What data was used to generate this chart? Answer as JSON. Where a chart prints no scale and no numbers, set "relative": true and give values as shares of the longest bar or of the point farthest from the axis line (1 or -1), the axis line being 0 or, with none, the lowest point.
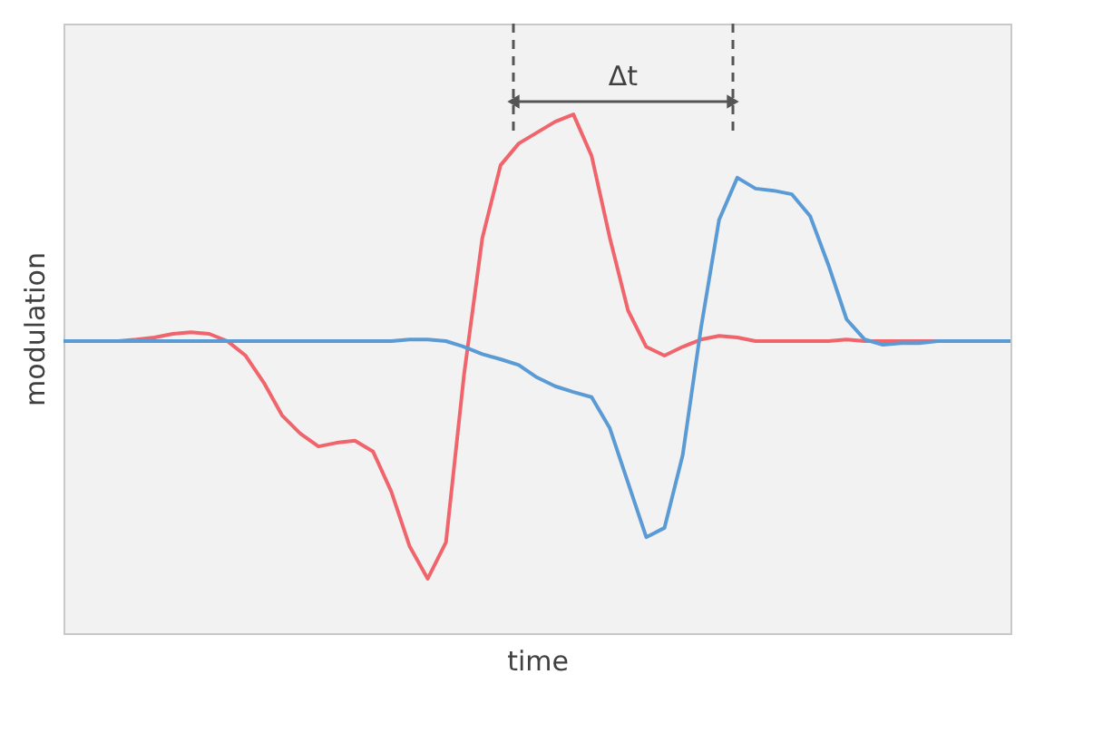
{
  "chart_data": {
    "type": "line",
    "relative": true,
    "xlabel": "time",
    "ylabel": "modulation",
    "line_style": "solid",
    "marker": "none",
    "categories": [
      null,
      null,
      null,
      null,
      null,
      null,
      null,
      null,
      null,
      null,
      null,
      null,
      null,
      null,
      null,
      null,
      null,
      null,
      null,
      null,
      null,
      null,
      null,
      null,
      null,
      null,
      null,
      null,
      null,
      null,
      null,
      null,
      null,
      null,
      null,
      null,
      null,
      null,
      null,
      null,
      null,
      null,
      null,
      null,
      null,
      null,
      null,
      null,
      null,
      null,
      null,
      null,
      null
    ],
    "series": [
      {
        "color": "#f0646c",
        "values": [
          null,
          null,
          null,
          0.563,
          0.566,
          0.57,
          0.577,
          0.58,
          0.577,
          0.563,
          0.535,
          0.483,
          0.42,
          0.385,
          0.36,
          0.367,
          0.371,
          0.35,
          0.273,
          0.168,
          0.105,
          0.175,
          0.5,
          0.762,
          0.902,
          0.944,
          0.965,
          0.986,
          1,
          0.92,
          0.762,
          0.622,
          0.552,
          0.535,
          0.552,
          0.566,
          0.573,
          0.57,
          0.563,
          0.563,
          0.563,
          0.563,
          0.563,
          0.566,
          0.563,
          0.563,
          0.563,
          0.563,
          0.563,
          null,
          null,
          null,
          null
        ]
      },
      {
        "color": "#5b9bd5",
        "values": [
          0.563,
          0.563,
          0.563,
          0.563,
          0.563,
          0.563,
          0.563,
          0.563,
          0.563,
          0.563,
          0.563,
          0.563,
          0.563,
          0.563,
          0.563,
          0.563,
          0.563,
          0.563,
          0.563,
          0.566,
          0.566,
          0.563,
          0.552,
          0.538,
          0.528,
          0.517,
          0.493,
          0.476,
          0.465,
          0.455,
          0.395,
          0.29,
          0.185,
          0.203,
          0.343,
          0.587,
          0.797,
          0.878,
          0.857,
          0.853,
          0.846,
          0.804,
          0.71,
          0.605,
          0.566,
          0.556,
          0.559,
          0.559,
          0.563,
          0.563,
          0.563,
          0.563,
          0.563
        ]
      }
    ],
    "annotations": [
      "Δt"
    ]
  }
}
